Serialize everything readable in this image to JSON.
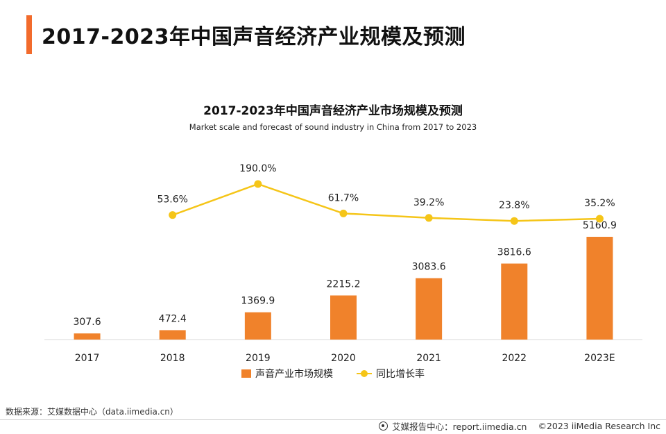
{
  "page_title": "2017-2023年中国声音经济产业规模及预测",
  "chart_data": {
    "type": "bar",
    "title": "2017-2023年中国声音经济产业市场规模及预测",
    "subtitle": "Market scale and forecast of sound industry in China from 2017 to 2023",
    "categories": [
      "2017",
      "2018",
      "2019",
      "2020",
      "2021",
      "2022",
      "2023E"
    ],
    "series": [
      {
        "name": "声音产业市场规模",
        "type": "bar",
        "color": "#f0822b",
        "values": [
          307.6,
          472.4,
          1369.9,
          2215.2,
          3083.6,
          3816.6,
          5160.9
        ],
        "labels": [
          "307.6",
          "472.4",
          "1369.9",
          "2215.2",
          "3083.6",
          "3816.6",
          "5160.9"
        ]
      },
      {
        "name": "同比增长率",
        "type": "line",
        "color": "#f5c518",
        "values": [
          null,
          53.6,
          190.0,
          61.7,
          39.2,
          23.8,
          35.2
        ],
        "labels": [
          null,
          "53.6%",
          "190.0%",
          "61.7%",
          "39.2%",
          "23.8%",
          "35.2%"
        ]
      }
    ],
    "grid": false,
    "legend_position": "bottom"
  },
  "footer": {
    "source": "数据来源：艾媒数据中心（data.iimedia.cn）",
    "report_center": "艾媒报告中心：report.iimedia.cn",
    "copyright": "©2023  iiMedia Research  Inc"
  }
}
